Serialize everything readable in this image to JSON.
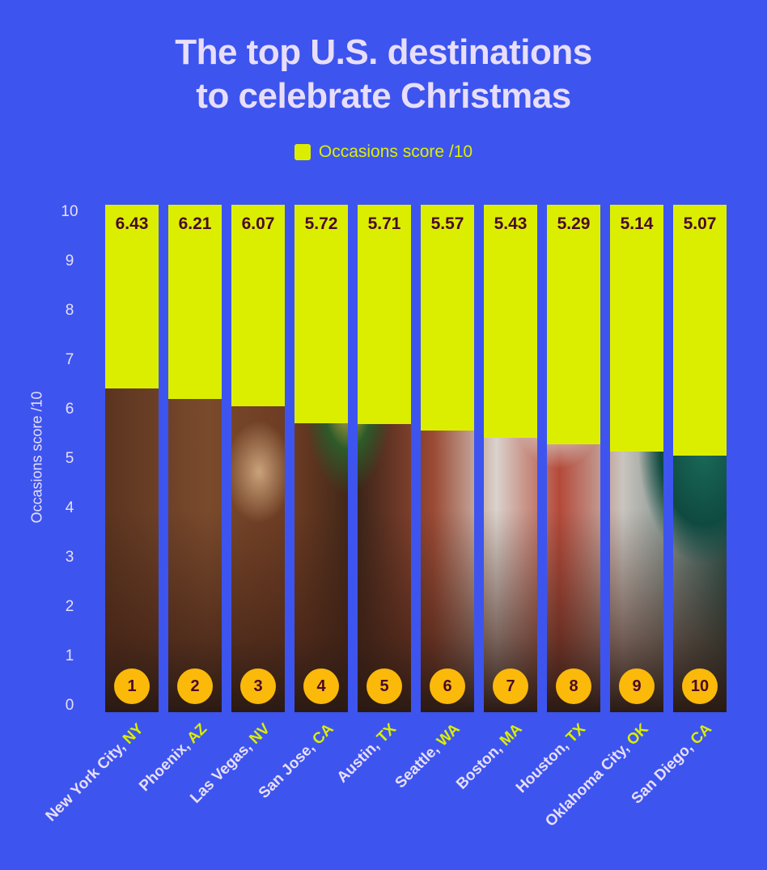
{
  "chart_data": {
    "type": "bar",
    "title": "The top U.S. destinations to celebrate Christmas",
    "title_lines": [
      "The top U.S. destinations",
      "to celebrate Christmas"
    ],
    "legend": [
      {
        "label": "Occasions score /10",
        "color": "#dcee00"
      }
    ],
    "legend_position": "top-center",
    "xlabel": "",
    "ylabel": "Occasions score /10",
    "ylim": [
      0,
      10
    ],
    "yticks": [
      0,
      1,
      2,
      3,
      4,
      5,
      6,
      7,
      8,
      9,
      10
    ],
    "grid": false,
    "categories": [
      {
        "city": "New York City,",
        "state": "NY"
      },
      {
        "city": "Phoenix,",
        "state": "AZ"
      },
      {
        "city": "Las Vegas,",
        "state": "NV"
      },
      {
        "city": "San Jose,",
        "state": "CA"
      },
      {
        "city": "Austin,",
        "state": "TX"
      },
      {
        "city": "Seattle,",
        "state": "WA"
      },
      {
        "city": "Boston,",
        "state": "MA"
      },
      {
        "city": "Houston,",
        "state": "TX"
      },
      {
        "city": "Oklahoma City,",
        "state": "OK"
      },
      {
        "city": "San Diego,",
        "state": "CA"
      }
    ],
    "values": [
      6.43,
      6.21,
      6.07,
      5.72,
      5.71,
      5.57,
      5.43,
      5.29,
      5.14,
      5.07
    ],
    "value_labels": [
      "6.43",
      "6.21",
      "6.07",
      "5.72",
      "5.71",
      "5.57",
      "5.43",
      "5.29",
      "5.14",
      "5.07"
    ],
    "ranks": [
      "1",
      "2",
      "3",
      "4",
      "5",
      "6",
      "7",
      "8",
      "9",
      "10"
    ]
  },
  "colors": {
    "background": "#3d55ee",
    "accent": "#dcee00",
    "text": "#e8defa",
    "value_text": "#4a0a28",
    "badge": "#fbb90a"
  }
}
